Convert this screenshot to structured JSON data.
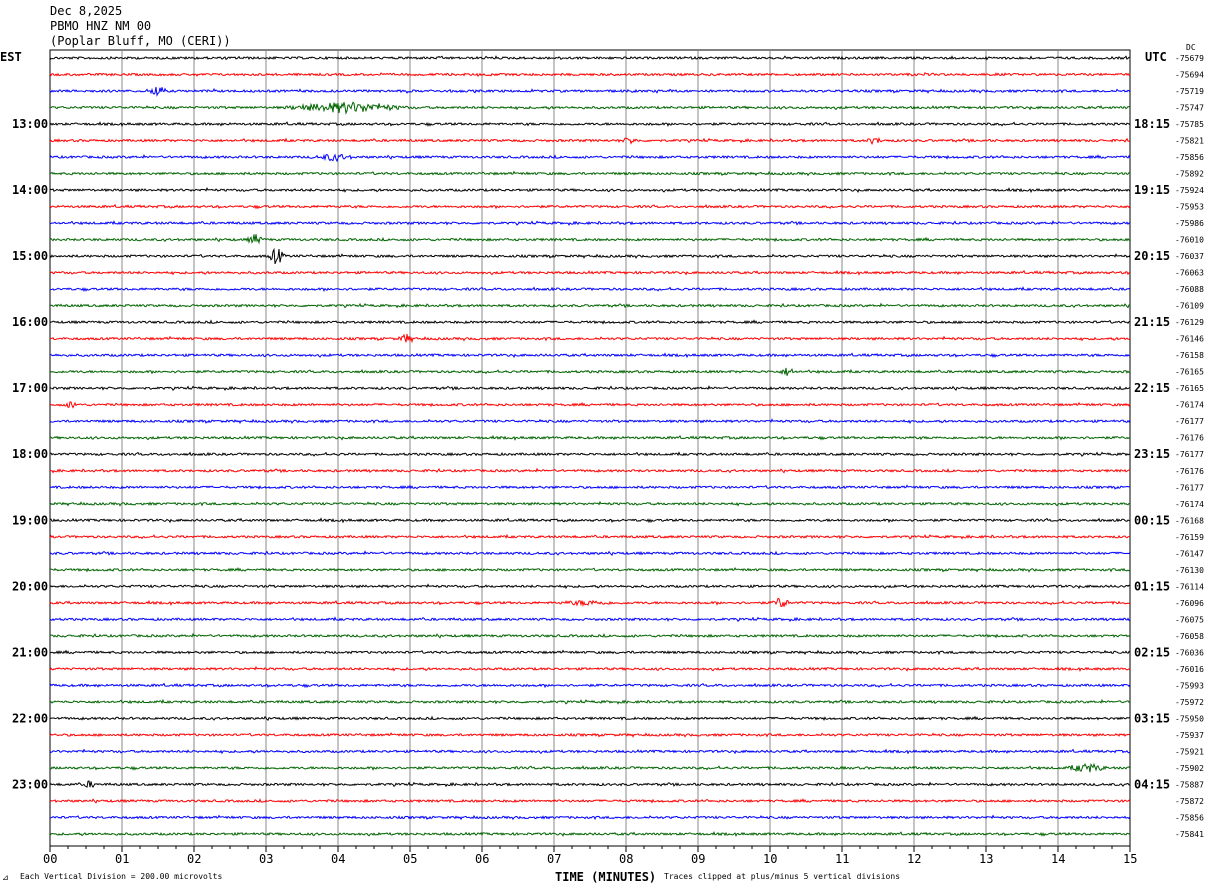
{
  "header": {
    "date": "Dec 8,2025",
    "station": "PBMO HNZ NM 00",
    "location": "(Poplar Bluff, MO (CERI))"
  },
  "chart_data": {
    "type": "line",
    "subtype": "helicorder",
    "left_timezone": "EST",
    "right_timezone": "UTC",
    "dc_label": "DC",
    "xlabel": "TIME (MINUTES)",
    "xlim": [
      0,
      15
    ],
    "x_ticks": [
      "00",
      "01",
      "02",
      "03",
      "04",
      "05",
      "06",
      "07",
      "08",
      "09",
      "10",
      "11",
      "12",
      "13",
      "14",
      "15"
    ],
    "grid": true,
    "trace_colors": [
      "#000000",
      "#ff0000",
      "#0000ff",
      "#006400"
    ],
    "left_hour_labels": [
      "13:00",
      "14:00",
      "15:00",
      "16:00",
      "17:00",
      "18:00",
      "19:00",
      "20:00",
      "21:00",
      "22:00",
      "23:00"
    ],
    "right_hour_labels": [
      "18:15",
      "19:15",
      "20:15",
      "21:15",
      "22:15",
      "23:15",
      "00:15",
      "01:15",
      "02:15",
      "03:15",
      "04:15"
    ],
    "dc_values": [
      -75679,
      -75694,
      -75719,
      -75747,
      -75785,
      -75821,
      -75856,
      -75892,
      -75924,
      -75953,
      -75986,
      -76010,
      -76037,
      -76063,
      -76088,
      -76109,
      -76129,
      -76146,
      -76158,
      -76165,
      -76165,
      -76174,
      -76177,
      -76176,
      -76177,
      -76176,
      -76177,
      -76174,
      -76168,
      -76159,
      -76147,
      -76130,
      -76114,
      -76096,
      -76075,
      -76058,
      -76036,
      -76016,
      -75993,
      -75972,
      -75950,
      -75937,
      -75921,
      -75902,
      -75887,
      -75872,
      -75856,
      -75841
    ],
    "events": [
      {
        "trace": 2,
        "minute": 1.5,
        "amplitude_div": 0.6
      },
      {
        "trace": 3,
        "minute": 4.1,
        "amplitude_div": 0.5,
        "duration_min": 0.9
      },
      {
        "trace": 5,
        "minute": 8.05,
        "amplitude_div": 0.3
      },
      {
        "trace": 5,
        "minute": 11.45,
        "amplitude_div": 0.3
      },
      {
        "trace": 6,
        "minute": 3.95,
        "amplitude_div": 0.3,
        "duration_min": 0.3
      },
      {
        "trace": 11,
        "minute": 2.85,
        "amplitude_div": 0.5
      },
      {
        "trace": 12,
        "minute": 3.15,
        "amplitude_div": 0.9
      },
      {
        "trace": 17,
        "minute": 4.95,
        "amplitude_div": 0.4
      },
      {
        "trace": 19,
        "minute": 10.25,
        "amplitude_div": 0.4
      },
      {
        "trace": 21,
        "minute": 0.3,
        "amplitude_div": 0.3
      },
      {
        "trace": 33,
        "minute": 7.45,
        "amplitude_div": 0.2,
        "duration_min": 0.4
      },
      {
        "trace": 33,
        "minute": 10.15,
        "amplitude_div": 0.6
      },
      {
        "trace": 43,
        "minute": 14.4,
        "amplitude_div": 0.4,
        "duration_min": 0.3
      },
      {
        "trace": 44,
        "minute": 0.55,
        "amplitude_div": 0.3
      }
    ]
  },
  "footer": {
    "scale_note": "Each Vertical Division =  200.00 microvolts",
    "clip_note": "Traces clipped at plus/minus 5 vertical divisions"
  }
}
